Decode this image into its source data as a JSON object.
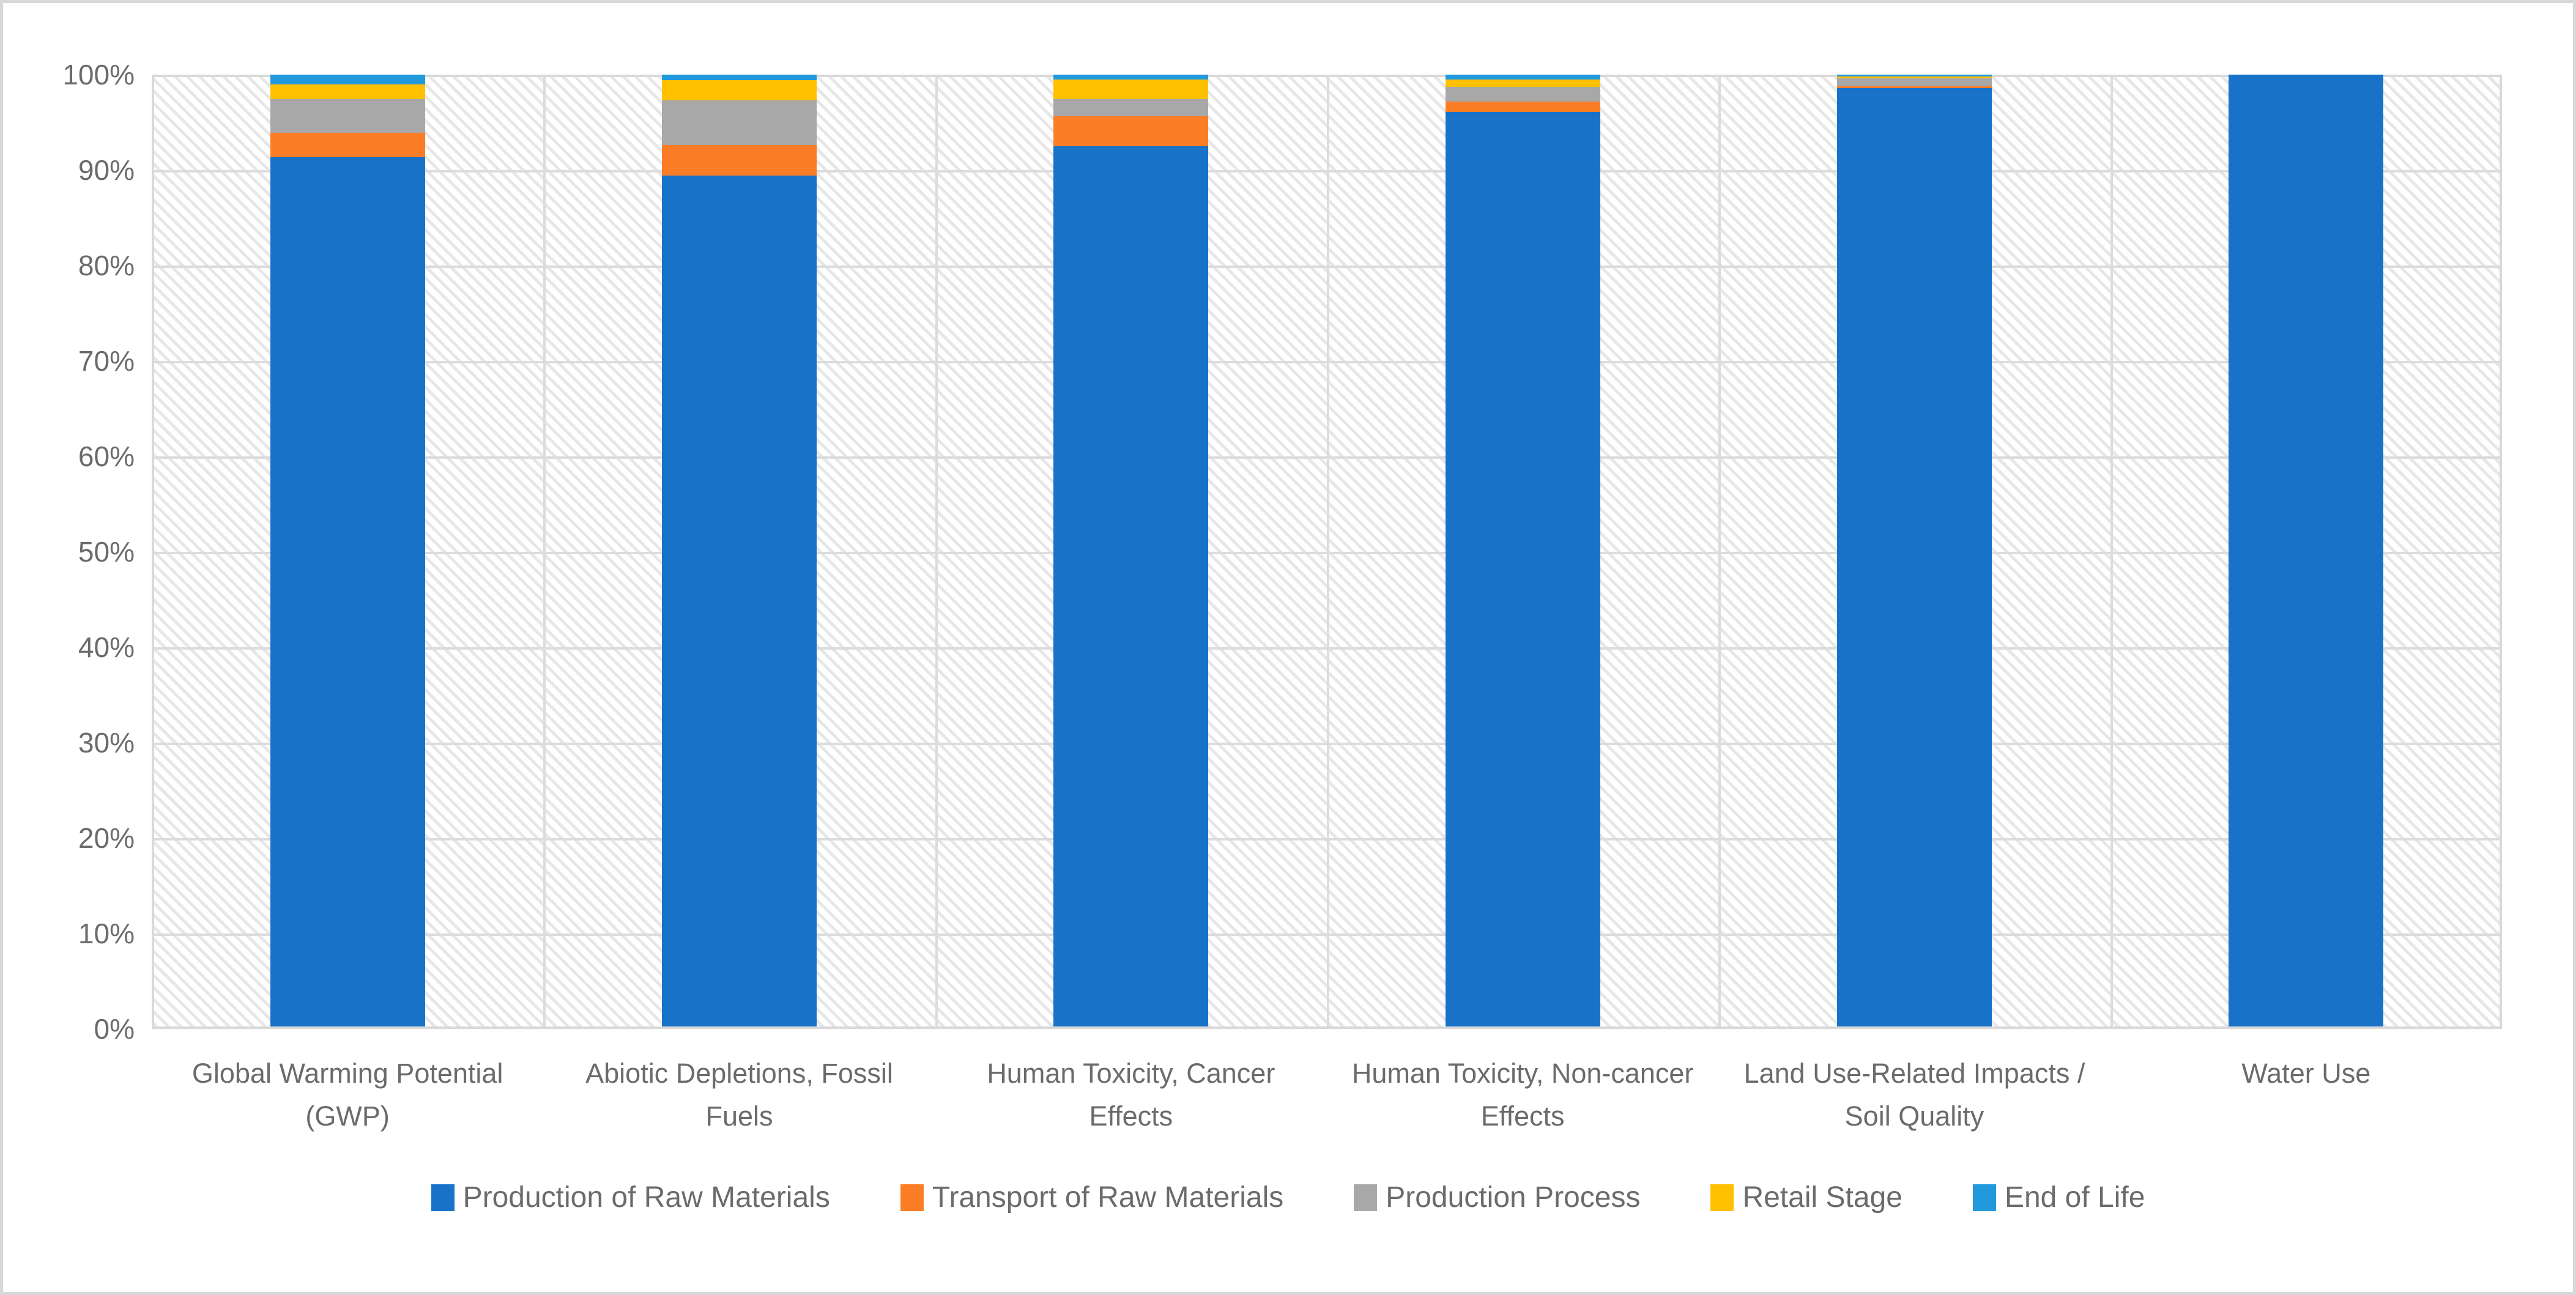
{
  "chart_data": {
    "type": "bar",
    "subtype": "stacked-100-percent-column",
    "title": "",
    "xlabel": "",
    "ylabel": "",
    "ylim": [
      0,
      100
    ],
    "grid": true,
    "legend_position": "bottom",
    "y_tick_labels": [
      "0%",
      "10%",
      "20%",
      "30%",
      "40%",
      "50%",
      "60%",
      "70%",
      "80%",
      "90%",
      "100%"
    ],
    "categories": [
      "Global Warming Potential (GWP)",
      "Abiotic Depletions, Fossil Fuels",
      "Human Toxicity, Cancer Effects",
      "Human Toxicity, Non-cancer Effects",
      "Land Use-Related Impacts / Soil Quality",
      "Water Use"
    ],
    "series": [
      {
        "name": "Production of Raw Materials",
        "color": "#1772c8",
        "values": [
          91.3,
          89.4,
          92.5,
          96.1,
          98.6,
          100
        ]
      },
      {
        "name": "Transport of Raw Materials",
        "color": "#fb7d26",
        "values": [
          2.6,
          3.2,
          3.1,
          1.1,
          0.2,
          0
        ]
      },
      {
        "name": "Production Process",
        "color": "#a8a8a8",
        "values": [
          3.5,
          4.7,
          1.8,
          1.5,
          0.8,
          0
        ]
      },
      {
        "name": "Retail Stage",
        "color": "#ffc002",
        "values": [
          1.6,
          2.1,
          2.1,
          0.8,
          0.2,
          0
        ]
      },
      {
        "name": "End of Life",
        "color": "#2199dc",
        "values": [
          1.0,
          0.6,
          0.5,
          0.5,
          0.2,
          0
        ]
      }
    ]
  },
  "style_colors": {
    "gridline": "#dcdcdc",
    "plot_border": "#d9d9d9",
    "axis_text": "#6b6b6b",
    "canvas_border": "#d8d8d8"
  }
}
